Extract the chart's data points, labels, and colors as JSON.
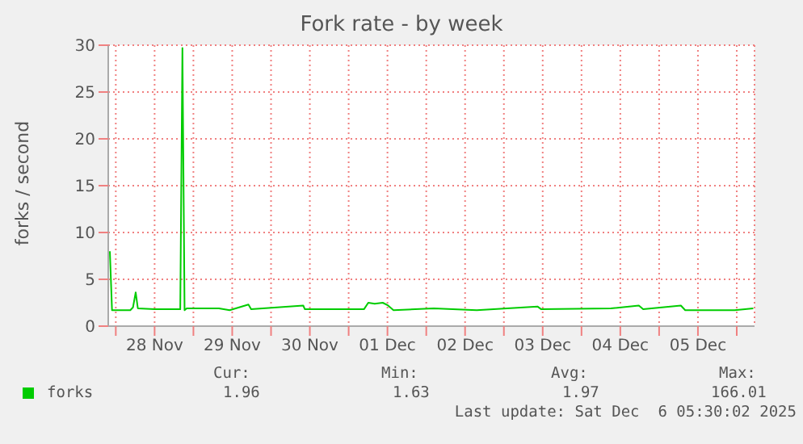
{
  "chart_data": {
    "type": "line",
    "title": "Fork rate - by week",
    "ylabel": "forks / second",
    "x": [
      "2025-11-27T22:10",
      "2025-11-27T22:50",
      "2025-11-28T04:29",
      "2025-11-28T05:19",
      "2025-11-28T06:09",
      "2025-11-28T06:49",
      "2025-11-28T12:00",
      "2025-11-28T19:56",
      "2025-11-28T20:36",
      "2025-11-28T21:16",
      "2025-11-28T21:55",
      "2025-11-29T07:53",
      "2025-11-29T11:13",
      "2025-11-29T17:01",
      "2025-11-29T17:51",
      "2025-11-30T09:58",
      "2025-11-30T10:28",
      "2025-12-01T04:44",
      "2025-12-01T06:04",
      "2025-12-01T08:03",
      "2025-12-01T10:32",
      "2025-12-01T12:12",
      "2025-12-01T13:52",
      "2025-12-02T02:19",
      "2025-12-02T15:36",
      "2025-12-03T10:23",
      "2025-12-03T11:33",
      "2025-12-04T09:06",
      "2025-12-04T17:44",
      "2025-12-04T19:04",
      "2025-12-05T06:44",
      "2025-12-05T08:04",
      "2025-12-05T23:20",
      "2025-12-06T05:07"
    ],
    "series": [
      {
        "name": "forks",
        "color": "#00cc00",
        "values": [
          8.0,
          1.7,
          1.7,
          2.0,
          3.6,
          1.9,
          1.8,
          1.8,
          29.7,
          1.7,
          1.9,
          1.9,
          1.7,
          2.3,
          1.8,
          2.2,
          1.8,
          1.8,
          2.5,
          2.4,
          2.5,
          2.2,
          1.7,
          1.9,
          1.7,
          2.1,
          1.8,
          1.9,
          2.2,
          1.8,
          2.2,
          1.7,
          1.7,
          1.9
        ]
      }
    ],
    "xlim": [
      "2025-11-27T21:40",
      "2025-12-06T05:30"
    ],
    "xticks": [
      {
        "value": "2025-11-28",
        "label": null
      },
      {
        "value": "2025-11-28T12:00",
        "label": "28 Nov"
      },
      {
        "value": "2025-11-29",
        "label": null
      },
      {
        "value": "2025-11-29T12:00",
        "label": "29 Nov"
      },
      {
        "value": "2025-11-30",
        "label": null
      },
      {
        "value": "2025-11-30T12:00",
        "label": "30 Nov"
      },
      {
        "value": "2025-12-01",
        "label": null
      },
      {
        "value": "2025-12-01T12:00",
        "label": "01 Dec"
      },
      {
        "value": "2025-12-02",
        "label": null
      },
      {
        "value": "2025-12-02T12:00",
        "label": "02 Dec"
      },
      {
        "value": "2025-12-03",
        "label": null
      },
      {
        "value": "2025-12-03T12:00",
        "label": "03 Dec"
      },
      {
        "value": "2025-12-04",
        "label": null
      },
      {
        "value": "2025-12-04T12:00",
        "label": "04 Dec"
      },
      {
        "value": "2025-12-05",
        "label": null
      },
      {
        "value": "2025-12-05T12:00",
        "label": "05 Dec"
      },
      {
        "value": "2025-12-06",
        "label": null
      }
    ],
    "ylim": [
      0,
      30
    ],
    "yticks": [
      0,
      5,
      10,
      15,
      20,
      25,
      30
    ],
    "grid": true,
    "legend": "bottom left",
    "marker": "none",
    "line_style": "solid",
    "annotations": [
      "Cur:",
      "Min:",
      "Avg:",
      "Max:",
      "1.96",
      "1.63",
      "1.97",
      "166.01",
      "Last update: Sat Dec  6 05:30:02 2025"
    ]
  }
}
